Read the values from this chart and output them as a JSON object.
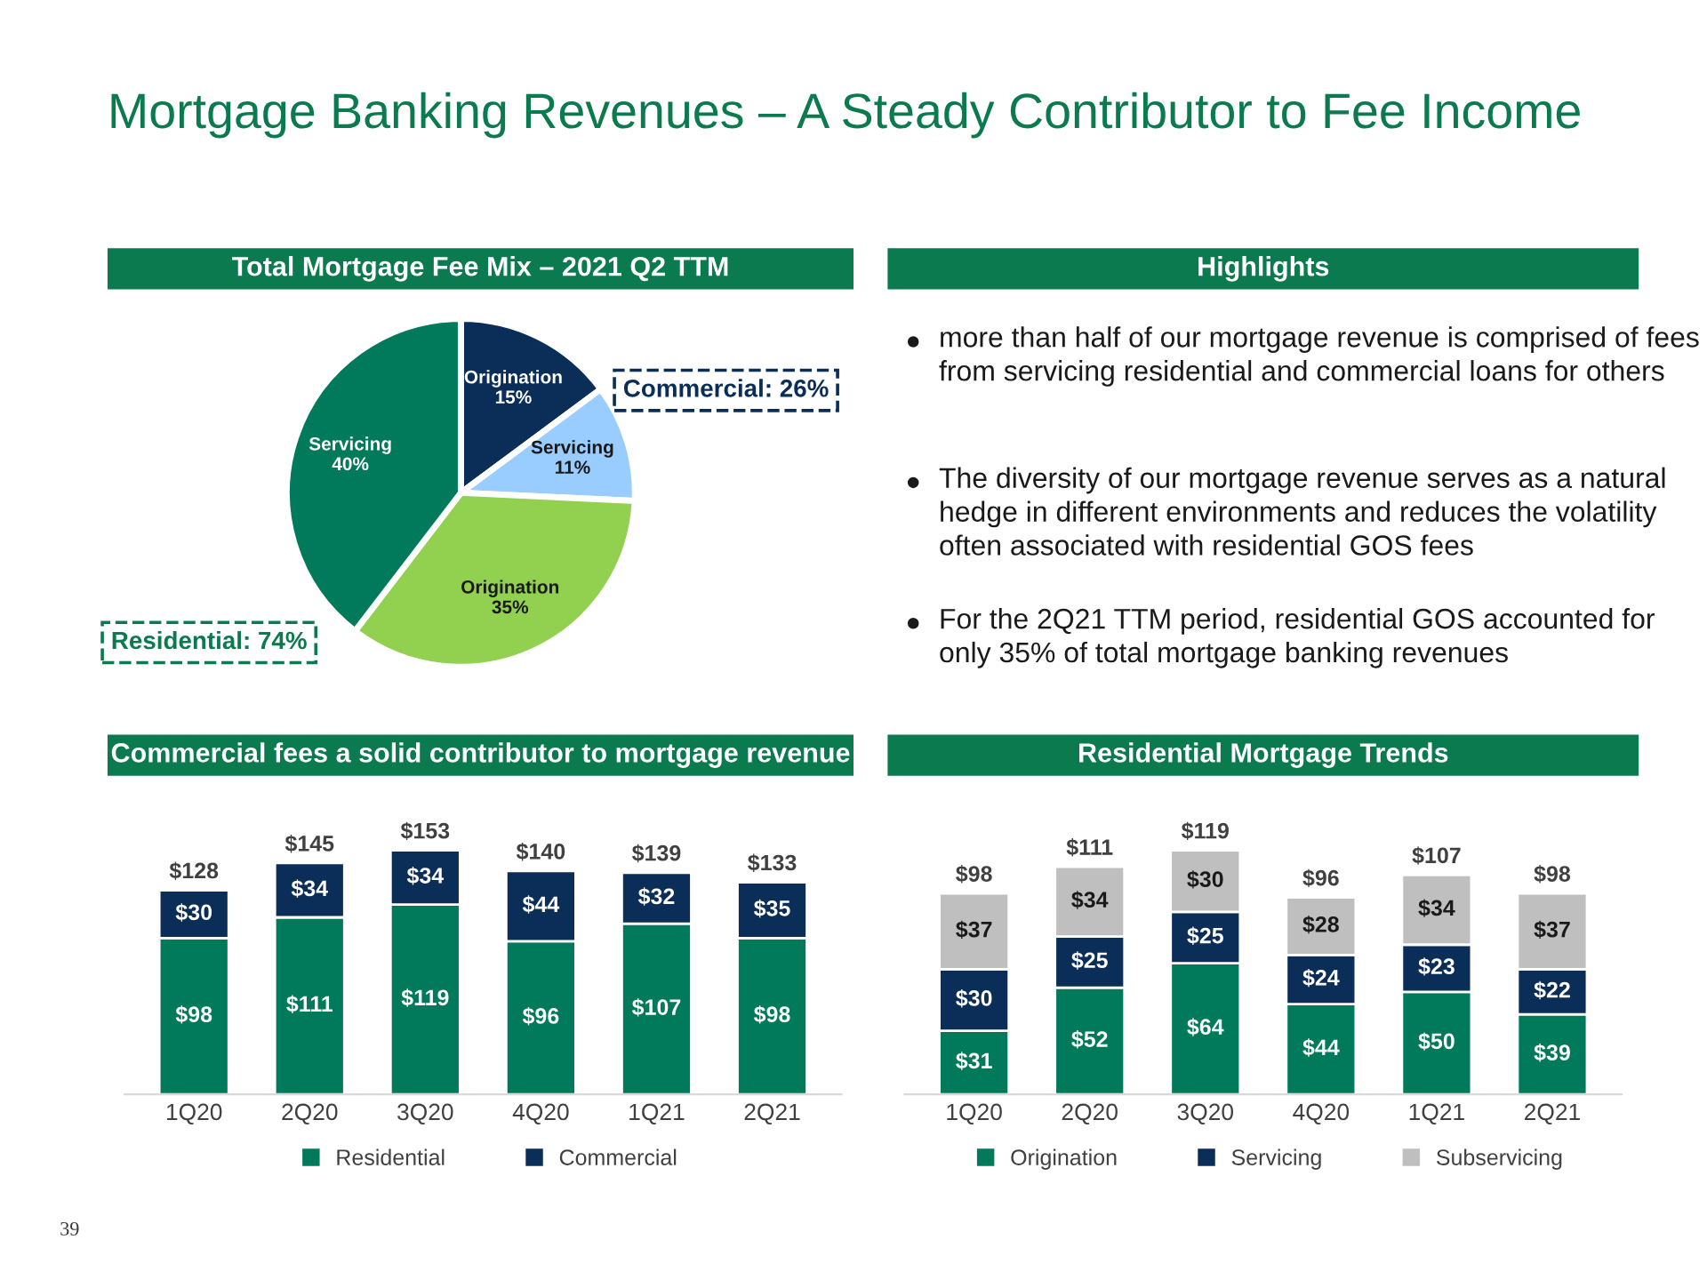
{
  "chart_data": [
    {
      "type": "other",
      "title": "Mortgage Banking Revenues – A Steady Contributor to Fee Income",
      "annotations": [
        "39"
      ]
    },
    {
      "type": "pie",
      "title": "Total Mortgage Fee Mix – 2021 Q2 TTM",
      "categories": [
        "Origination",
        "Servicing",
        "Origination",
        "Servicing"
      ],
      "values": [
        15,
        11,
        35,
        40
      ],
      "value_labels": [
        "15%",
        "11%",
        "35%",
        "40%"
      ],
      "colors": [
        "#0b2e59",
        "#99ccff",
        "#92d050",
        "#007a5a"
      ],
      "legend": false,
      "annotations": [
        "Commercial: 26%",
        "Residential: 74%"
      ]
    },
    {
      "type": "other",
      "title": "Highlights",
      "annotations": [
        "more than half of our mortgage revenue is comprised of fees from servicing residential and commercial loans for others",
        "The diversity of our mortgage revenue serves as a natural hedge in different environments and reduces the volatility often associated with residential GOS fees",
        "For the 2Q21 TTM period, residential GOS accounted for only 35% of total mortgage banking revenues"
      ]
    },
    {
      "type": "bar",
      "title": "Commercial fees a solid contributor to mortgage revenue",
      "categories": [
        "1Q20",
        "2Q20",
        "3Q20",
        "4Q20",
        "1Q21",
        "2Q21"
      ],
      "stacked": true,
      "legend": "bottom",
      "tick_labels": "x",
      "series": [
        {
          "name": "Residential",
          "color": "#007a5a",
          "values": [
            98,
            111,
            119,
            96,
            107,
            98
          ],
          "value_labels": [
            "$98",
            "$111",
            "$119",
            "$96",
            "$107",
            "$98"
          ]
        },
        {
          "name": "Commercial",
          "color": "#0b2e59",
          "values": [
            30,
            34,
            34,
            44,
            32,
            35
          ],
          "value_labels": [
            "$30",
            "$34",
            "$34",
            "$44",
            "$32",
            "$35"
          ]
        }
      ],
      "totals": [
        "$128",
        "$145",
        "$153",
        "$140",
        "$139",
        "$133"
      ]
    },
    {
      "type": "bar",
      "title": "Residential Mortgage Trends",
      "categories": [
        "1Q20",
        "2Q20",
        "3Q20",
        "4Q20",
        "1Q21",
        "2Q21"
      ],
      "stacked": true,
      "legend": "bottom",
      "tick_labels": "x",
      "series": [
        {
          "name": "Origination",
          "color": "#007a5a",
          "values": [
            31,
            52,
            64,
            44,
            50,
            39
          ],
          "value_labels": [
            "$31",
            "$52",
            "$64",
            "$44",
            "$50",
            "$39"
          ]
        },
        {
          "name": "Servicing",
          "color": "#0b2e59",
          "values": [
            30,
            25,
            25,
            24,
            23,
            22
          ],
          "value_labels": [
            "$30",
            "$25",
            "$25",
            "$24",
            "$23",
            "$22"
          ]
        },
        {
          "name": "Subservicing",
          "color": "#bfbfbf",
          "values": [
            37,
            34,
            30,
            28,
            34,
            37
          ],
          "value_labels": [
            "$37",
            "$34",
            "$30",
            "$28",
            "$34",
            "$37"
          ]
        }
      ],
      "totals": [
        "$98",
        "$111",
        "$119",
        "$96",
        "$107",
        "$98"
      ]
    }
  ]
}
